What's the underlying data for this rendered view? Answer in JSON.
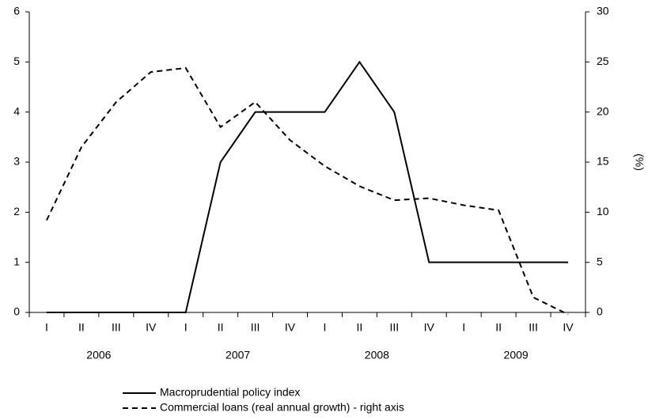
{
  "chart_data": {
    "type": "line",
    "categories": [
      "I",
      "II",
      "III",
      "IV",
      "I",
      "II",
      "III",
      "IV",
      "I",
      "II",
      "III",
      "IV",
      "I",
      "II",
      "III",
      "IV"
    ],
    "year_labels": [
      "2006",
      "2007",
      "2008",
      "2009"
    ],
    "y2_label": "(%)",
    "ylim": [
      0,
      6
    ],
    "yticks": [
      0,
      1,
      2,
      3,
      4,
      5,
      6
    ],
    "y2lim": [
      0,
      30
    ],
    "y2ticks": [
      0,
      5,
      10,
      15,
      20,
      25,
      30
    ],
    "grid": false,
    "series": [
      {
        "name": "Macroprudential policy index",
        "color": "#000000",
        "style": "solid",
        "values": [
          0,
          0,
          0,
          0,
          0,
          3,
          4,
          4,
          4,
          5,
          4,
          1,
          1,
          1,
          1,
          1
        ]
      },
      {
        "name": "Commercial loans (real annual growth) - right axis",
        "color": "#000000",
        "style": "dashed",
        "axis": "y2",
        "values": [
          9.2,
          16.5,
          21,
          24,
          24.4,
          18.5,
          21,
          17.2,
          14.6,
          12.6,
          11.2,
          11.4,
          10.7,
          10.2,
          1.5,
          -0.2
        ]
      }
    ]
  }
}
